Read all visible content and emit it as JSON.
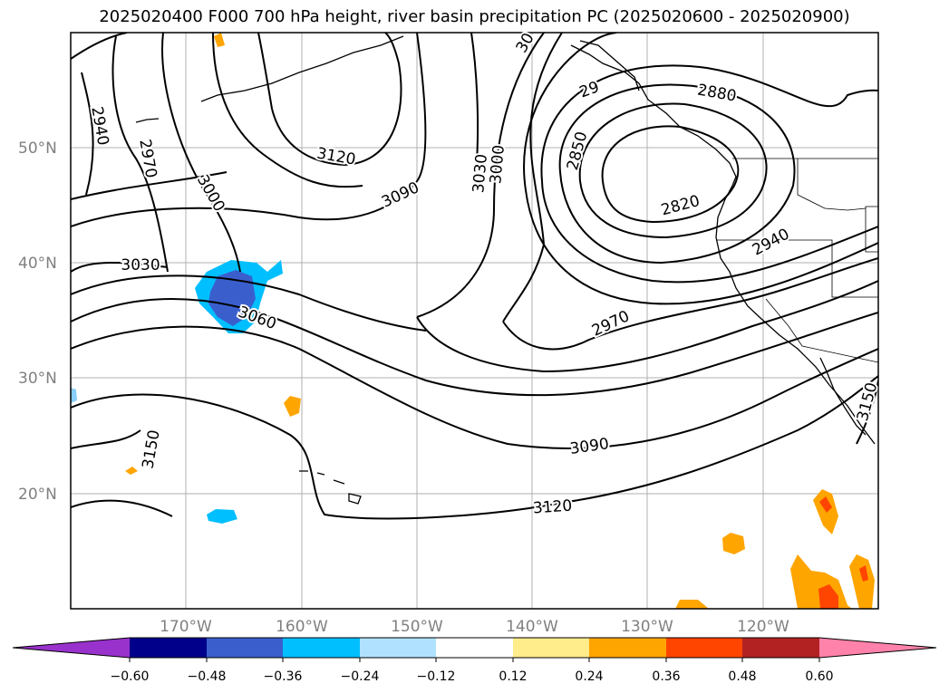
{
  "title": "2025020400 F000 700 hPa height, river basin precipitation PC (2025020600 - 2025020900)",
  "axes": {
    "lat_labels": [
      "50°N",
      "40°N",
      "30°N",
      "20°N"
    ],
    "lon_labels": [
      "170°W",
      "160°W",
      "150°W",
      "140°W",
      "130°W",
      "120°W"
    ]
  },
  "contour_labels": [
    {
      "text": "2940",
      "rotate": 80
    },
    {
      "text": "2970",
      "rotate": 80
    },
    {
      "text": "3000",
      "rotate": 60
    },
    {
      "text": "3120",
      "rotate": 10
    },
    {
      "text": "3090",
      "rotate": -25
    },
    {
      "text": "3030",
      "rotate": -85
    },
    {
      "text": "3000",
      "rotate": -85
    },
    {
      "text": "2850",
      "rotate": -75
    },
    {
      "text": "2880",
      "rotate": 10
    },
    {
      "text": "2820",
      "rotate": -15
    },
    {
      "text": "2940",
      "rotate": -28
    },
    {
      "text": "3030",
      "rotate": 0
    },
    {
      "text": "3060",
      "rotate": 20
    },
    {
      "text": "2970",
      "rotate": -25
    },
    {
      "text": "3090",
      "rotate": -8
    },
    {
      "text": "3120",
      "rotate": -4
    },
    {
      "text": "3150",
      "rotate": -80
    },
    {
      "text": "3150",
      "rotate": -75
    },
    {
      "text": "30",
      "rotate": -60
    },
    {
      "text": "29",
      "rotate": -20
    }
  ],
  "colorbar": {
    "ticks": [
      "−0.60",
      "−0.48",
      "−0.36",
      "−0.24",
      "−0.12",
      "0.12",
      "0.24",
      "0.36",
      "0.48",
      "0.60"
    ],
    "colors": [
      "#9932cc",
      "#00008b",
      "#3a5fcd",
      "#00bfff",
      "#b0e2ff",
      "#ffffff",
      "#ffec8b",
      "#ffa500",
      "#ff4500",
      "#b22222",
      "#ff82ab"
    ]
  }
}
